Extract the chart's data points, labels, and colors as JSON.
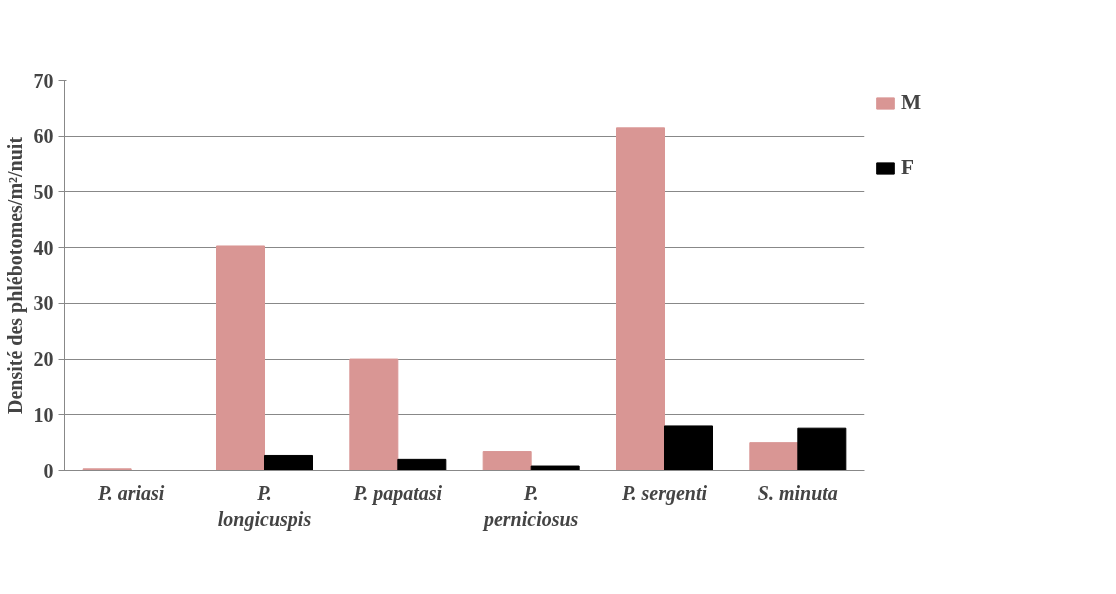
{
  "chart_data": {
    "type": "bar",
    "ylabel": "Densité des phlébotomes/m²/nuit",
    "categories": [
      "P. ariasi",
      "P. longicuspis",
      "P. papatasi",
      "P. perniciosus",
      "P. sergenti",
      "S. minuta"
    ],
    "series": [
      {
        "name": "M",
        "color": "#d99694",
        "values": [
          0.3,
          40.3,
          20,
          3.4,
          61.5,
          5
        ]
      },
      {
        "name": "F",
        "color": "#000000",
        "values": [
          0,
          2.7,
          2,
          0.8,
          8,
          7.6
        ]
      }
    ],
    "ylim": [
      0,
      70
    ],
    "yticks": [
      0,
      10,
      20,
      30,
      40,
      50,
      60,
      70
    ],
    "grid": "y",
    "legend": "right"
  }
}
